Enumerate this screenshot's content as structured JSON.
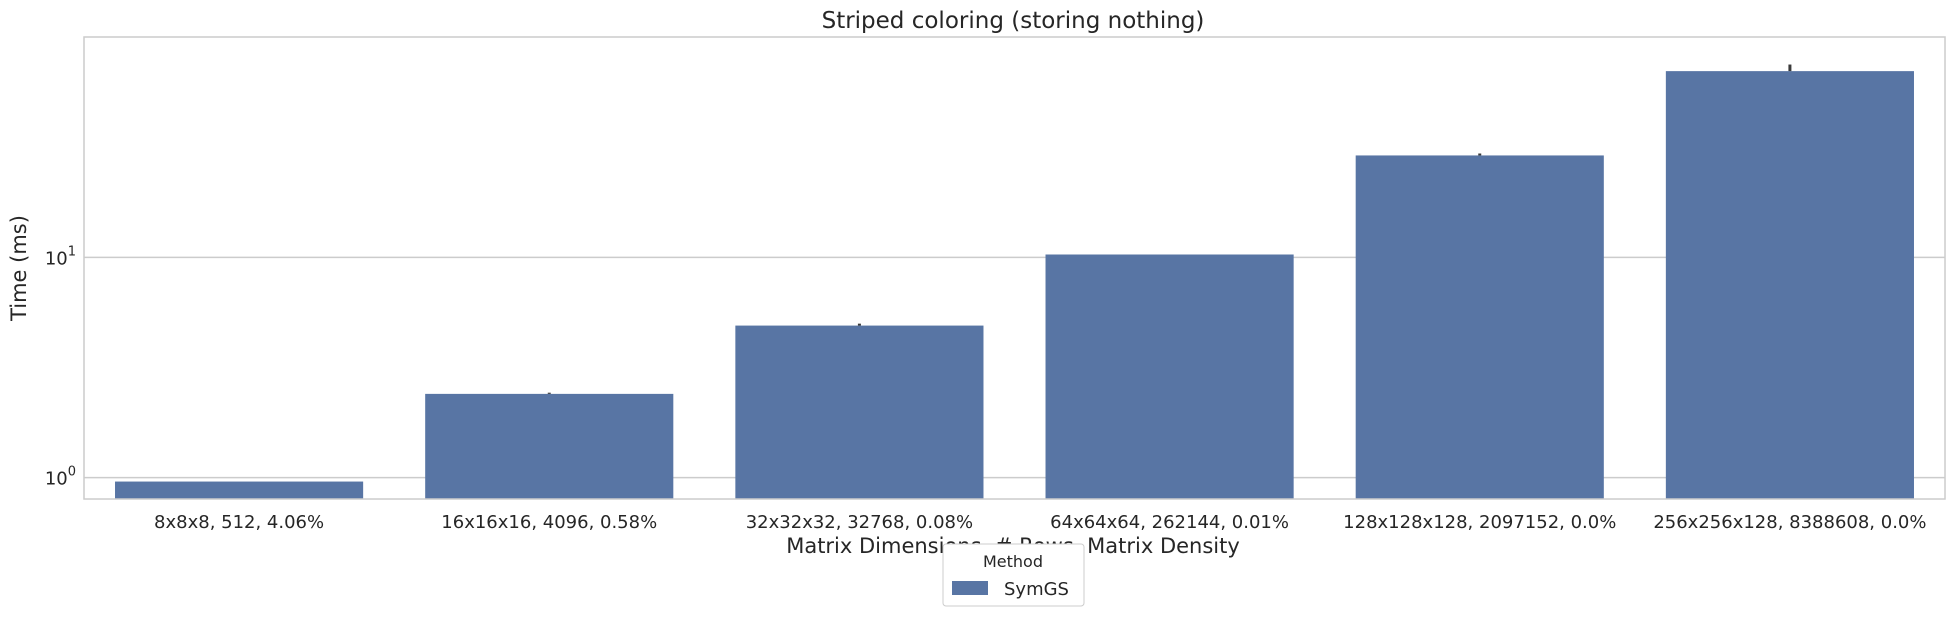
{
  "chart_data": {
    "type": "bar",
    "title": "Striped coloring (storing nothing)",
    "xlabel": "Matrix Dimensions, # Rows, Matrix Density",
    "ylabel": "Time (ms)",
    "yscale": "log",
    "ylim": [
      0.8,
      100
    ],
    "yticks": [
      1,
      10
    ],
    "ytick_labels": [
      {
        "base": "10",
        "exp": "0"
      },
      {
        "base": "10",
        "exp": "1"
      }
    ],
    "grid": "horizontal",
    "categories": [
      "8x8x8, 512, 4.06%",
      "16x16x16, 4096, 0.58%",
      "32x32x32, 32768, 0.08%",
      "64x64x64, 262144, 0.01%",
      "128x128x128, 2097152, 0.0%",
      "256x256x128, 8388608, 0.0%"
    ],
    "series": [
      {
        "name": "SymGS",
        "color": "#5875a4",
        "values": [
          0.96,
          2.4,
          4.9,
          10.3,
          29,
          70
        ],
        "error_high": [
          0.96,
          2.43,
          5.0,
          10.3,
          29.6,
          75
        ]
      }
    ],
    "legend": {
      "title": "Method",
      "placement": "bottom-center"
    }
  }
}
